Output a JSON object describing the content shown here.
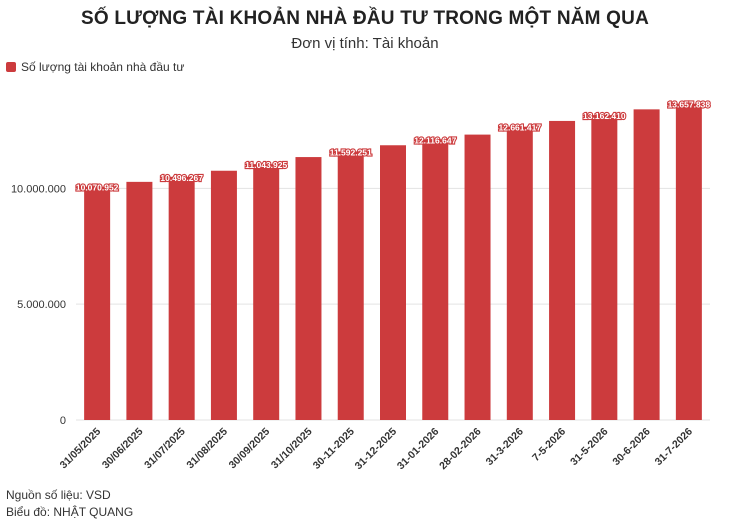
{
  "header": {
    "title": "SỐ LƯỢNG TÀI KHOẢN NHÀ ĐẦU TƯ TRONG MỘT NĂM QUA",
    "subtitle": "Đơn vị tính: Tài khoản"
  },
  "legend": {
    "label": "Số lượng tài khoản nhà đầu tư",
    "color": "#cc3b3d"
  },
  "footer": {
    "source": "Nguồn số liệu: VSD",
    "author": "Biểu đồ: NHẬT QUANG"
  },
  "chart_data": {
    "type": "bar",
    "title": "SỐ LƯỢNG TÀI KHOẢN NHÀ ĐẦU TƯ TRONG MỘT NĂM QUA",
    "subtitle": "Đơn vị tính: Tài khoản",
    "categories": [
      "31/05/2025",
      "30/06/2025",
      "31/07/2025",
      "31/08/2025",
      "30/09/2025",
      "31/10/2025",
      "30-11-2025",
      "31-12-2025",
      "31-01-2026",
      "28-02-2026",
      "31-3-2026",
      "7-5-2026",
      "31-5-2026",
      "30-6-2026",
      "31-7-2026"
    ],
    "series": [
      {
        "name": "Số lượng tài khoản nhà đầu tư",
        "color": "#cc3b3d",
        "values": [
          10070952,
          10280000,
          10496267,
          10760000,
          11043925,
          11350000,
          11592251,
          11860000,
          12116647,
          12320000,
          12661417,
          12910000,
          13162410,
          13410000,
          13657838
        ]
      }
    ],
    "data_labels": [
      "10.070.952",
      null,
      "10.496.267",
      null,
      "11.043.925",
      null,
      "11.592.251",
      null,
      "12.116.647",
      null,
      "12.661.417",
      null,
      "13.162.410",
      null,
      "13.657.838"
    ],
    "y_ticks": [
      0,
      5000000,
      10000000
    ],
    "y_tick_labels": [
      "0",
      "5.000.000",
      "10.000.000"
    ],
    "ylim": [
      0,
      13900000
    ],
    "xlabel": "",
    "ylabel": "",
    "grid": true,
    "legend_position": "top-left"
  }
}
